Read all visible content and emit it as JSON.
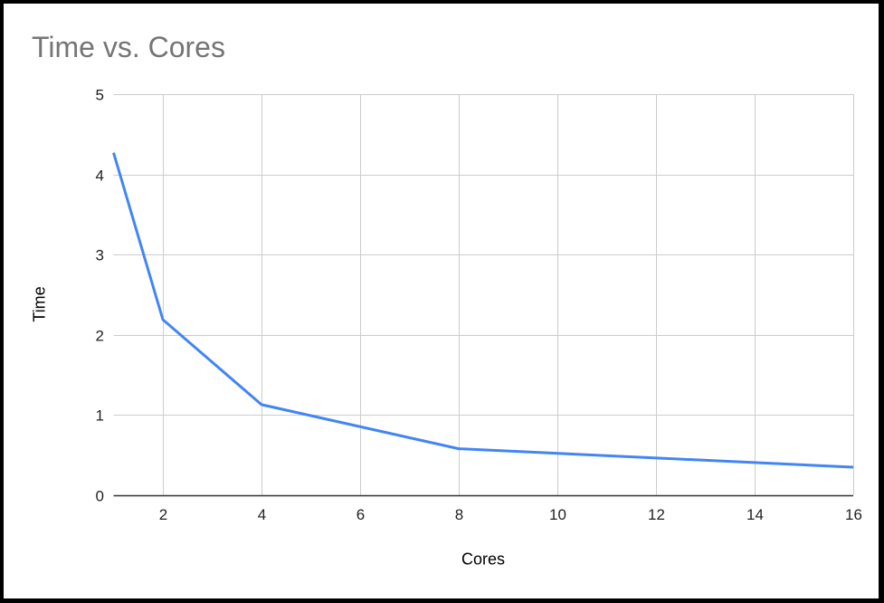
{
  "chart_data": {
    "type": "line",
    "title": "Time vs. Cores",
    "xlabel": "Cores",
    "ylabel": "Time",
    "x": [
      1,
      2,
      4,
      8,
      16
    ],
    "series": [
      {
        "name": "Time",
        "values": [
          4.27,
          2.19,
          1.13,
          0.58,
          0.35
        ],
        "color": "#4285F4"
      }
    ],
    "xticks": [
      2,
      4,
      6,
      8,
      10,
      12,
      14,
      16
    ],
    "yticks": [
      0,
      1,
      2,
      3,
      4,
      5
    ],
    "xlim": [
      1,
      16
    ],
    "ylim": [
      0,
      5
    ],
    "grid": true,
    "legend": "none"
  }
}
